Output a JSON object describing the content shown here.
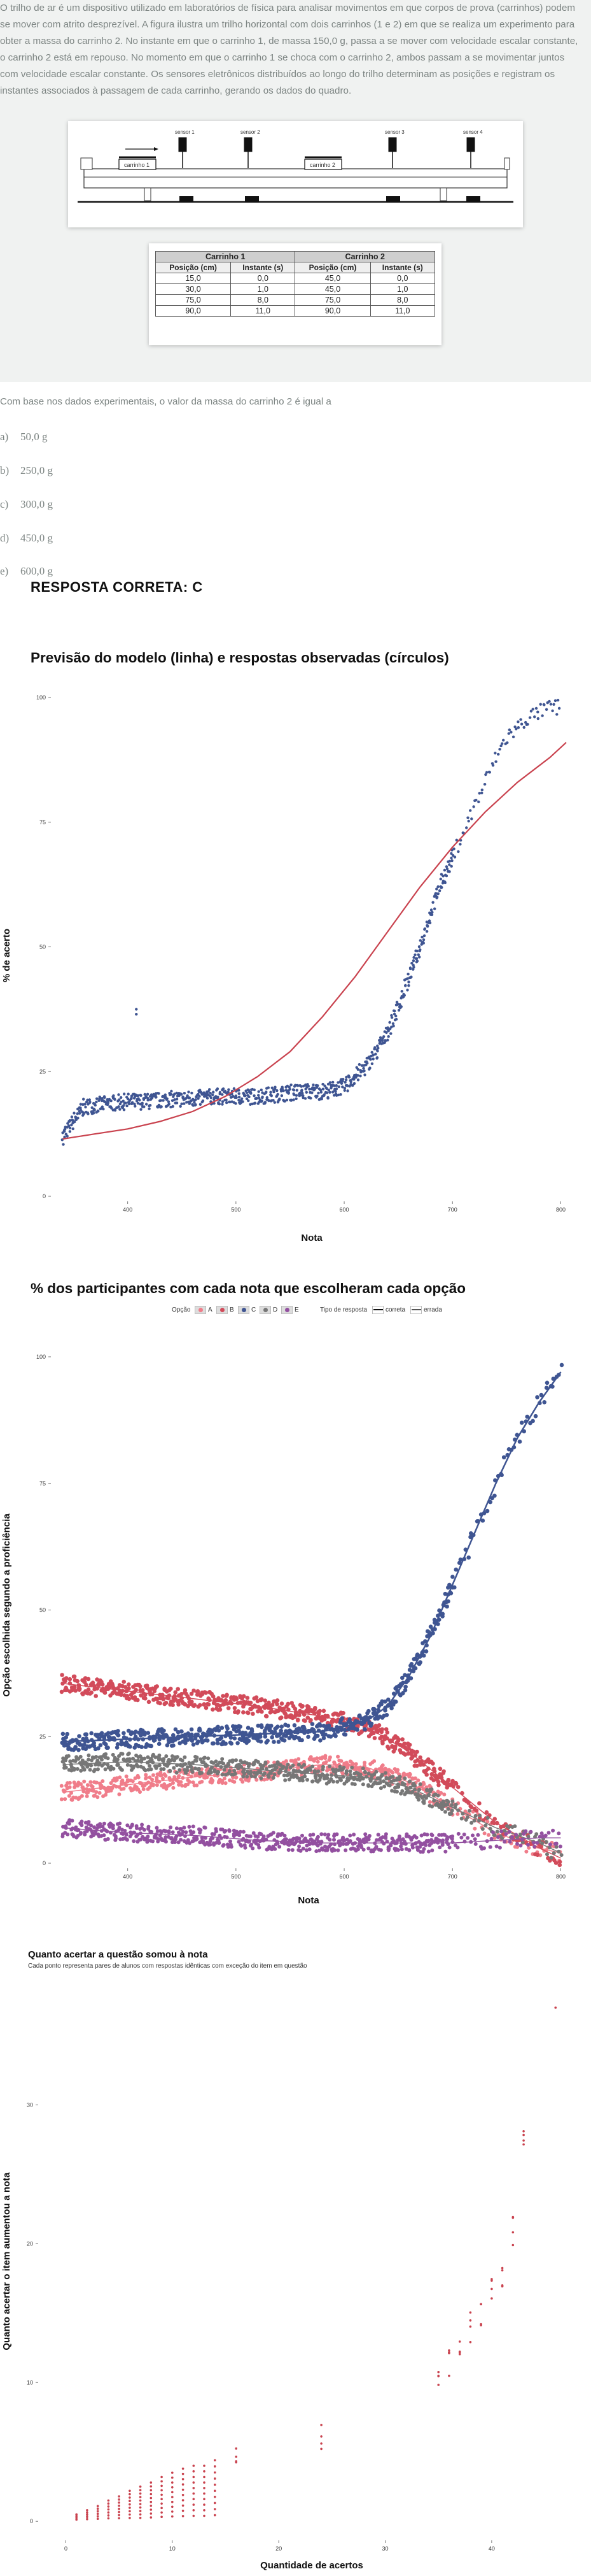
{
  "question": {
    "stem": "O trilho de ar é um dispositivo utilizado em laboratórios de física para analisar movimentos em que corpos de prova (carrinhos) podem se mover com atrito desprezível. A figura ilustra um trilho horizontal com dois carrinhos (1 e 2) em que se realiza um experimento para obter a massa do carrinho 2. No instante em que o carrinho 1, de massa 150,0 g, passa a se mover com velocidade escalar constante, o carrinho 2 está em repouso. No momento em que o carrinho 1 se choca com o carrinho 2, ambos passam a se movimentar juntos com velocidade escalar constante. Os sensores eletrônicos distribuídos ao longo do trilho determinam as posições e registram os instantes associados à passagem de cada carrinho, gerando os dados do quadro.",
    "prompt": "Com base nos dados experimentais, o valor da massa do carrinho 2 é igual a",
    "figure": {
      "sensors": [
        "sensor 1",
        "sensor 2",
        "sensor 3",
        "sensor 4"
      ],
      "carts": [
        "carrinho 1",
        "carrinho 2"
      ]
    },
    "table": {
      "groups": [
        "Carrinho 1",
        "Carrinho 2"
      ],
      "headers": [
        "Posição (cm)",
        "Instante (s)",
        "Posição (cm)",
        "Instante (s)"
      ],
      "rows": [
        [
          "15,0",
          "0,0",
          "45,0",
          "0,0"
        ],
        [
          "30,0",
          "1,0",
          "45,0",
          "1,0"
        ],
        [
          "75,0",
          "8,0",
          "75,0",
          "8,0"
        ],
        [
          "90,0",
          "11,0",
          "90,0",
          "11,0"
        ]
      ]
    },
    "alternatives": [
      {
        "letter": "a)",
        "text": "50,0 g"
      },
      {
        "letter": "b)",
        "text": "250,0 g"
      },
      {
        "letter": "c)",
        "text": "300,0 g"
      },
      {
        "letter": "d)",
        "text": "450,0 g"
      },
      {
        "letter": "e)",
        "text": "600,0 g"
      }
    ],
    "answer_text": "RESPOSTA CORRETA: C"
  },
  "chart_data": [
    {
      "type": "scatter",
      "title": "Previsão do modelo (linha) e respostas observadas (círculos)",
      "xlabel": "Nota",
      "ylabel": "% de acerto",
      "xlim": [
        335,
        805
      ],
      "ylim": [
        0,
        100
      ],
      "xticks": [
        "400",
        "500",
        "600",
        "700",
        "800"
      ],
      "yticks": [
        "0",
        "25",
        "50",
        "75",
        "100"
      ],
      "series": [
        {
          "role": "observed",
          "color": "#3f5592",
          "x": [
            340,
            360,
            380,
            400,
            420,
            440,
            460,
            480,
            500,
            520,
            540,
            560,
            580,
            600,
            610,
            620,
            630,
            640,
            650,
            660,
            670,
            680,
            690,
            700,
            710,
            720,
            730,
            740,
            750,
            760,
            770,
            780,
            790,
            800
          ],
          "y": [
            12,
            18,
            18.5,
            19,
            19,
            19.5,
            19.5,
            20,
            20,
            20,
            20.5,
            21,
            21,
            22,
            24,
            26,
            29,
            33,
            38,
            44,
            50,
            57,
            63,
            68,
            73,
            78,
            83,
            88,
            92,
            94,
            96,
            97,
            98,
            98
          ]
        },
        {
          "role": "model",
          "color": "#c9424e",
          "x": [
            340,
            370,
            400,
            430,
            460,
            490,
            520,
            550,
            580,
            610,
            640,
            670,
            700,
            730,
            760,
            790,
            805
          ],
          "y": [
            11.5,
            12.5,
            13.5,
            15,
            17,
            20,
            24,
            29,
            36,
            44,
            53,
            62,
            70,
            77,
            83,
            88,
            91
          ]
        }
      ],
      "outliers": [
        {
          "x": 408,
          "y": 36.5
        },
        {
          "x": 408,
          "y": 37.5
        }
      ]
    },
    {
      "type": "scatter",
      "title": "% dos participantes com cada nota que escolheram cada opção",
      "xlabel": "Nota",
      "ylabel": "Opção escolhida segundo a proficiência",
      "xlim": [
        335,
        805
      ],
      "ylim": [
        0,
        100
      ],
      "xticks": [
        "400",
        "500",
        "600",
        "700",
        "800"
      ],
      "yticks": [
        "0",
        "25",
        "50",
        "75",
        "100"
      ],
      "legend": {
        "option_label": "Opção",
        "options": [
          "A",
          "B",
          "C",
          "D",
          "E"
        ],
        "type_label": "Tipo de resposta",
        "types": [
          "correta",
          "errada"
        ],
        "placement": "top"
      },
      "series": [
        {
          "name": "A",
          "color": "#f07d8a",
          "x": [
            340,
            400,
            460,
            520,
            580,
            620,
            660,
            700,
            740,
            780,
            800
          ],
          "y": [
            14,
            15.5,
            17,
            18,
            19.5,
            19,
            16,
            11,
            6,
            3,
            2
          ]
        },
        {
          "name": "B",
          "color": "#d24b5a",
          "x": [
            340,
            400,
            460,
            520,
            580,
            620,
            660,
            700,
            740,
            780,
            800
          ],
          "y": [
            35.5,
            34,
            32.5,
            31,
            29,
            27,
            22,
            15,
            8,
            3,
            1
          ]
        },
        {
          "name": "C",
          "color": "#3f5592",
          "x": [
            340,
            400,
            460,
            520,
            580,
            620,
            640,
            660,
            680,
            700,
            720,
            740,
            760,
            780,
            800
          ],
          "y": [
            24,
            24.5,
            25,
            25.5,
            26,
            28,
            31,
            37,
            45,
            55,
            65,
            75,
            84,
            91,
            97
          ]
        },
        {
          "name": "D",
          "color": "#777777",
          "x": [
            340,
            400,
            460,
            520,
            580,
            620,
            660,
            700,
            740,
            780,
            800
          ],
          "y": [
            19.5,
            20,
            19.5,
            18.5,
            17.5,
            17,
            15,
            11,
            7,
            4,
            2
          ]
        },
        {
          "name": "E",
          "color": "#9350a0",
          "x": [
            340,
            400,
            460,
            520,
            580,
            620,
            660,
            700,
            740,
            780,
            800
          ],
          "y": [
            7,
            6,
            5.5,
            4.5,
            4,
            4,
            4,
            4,
            4.5,
            5,
            5
          ]
        }
      ]
    },
    {
      "type": "scatter",
      "title": "Quanto acertar a questão somou à nota",
      "subtitle": "Cada ponto representa pares de alunos com respostas idênticas com exceção do item em questão",
      "xlabel": "Quantidade de acertos",
      "ylabel": "Quanto acertar o item aumentou a nota",
      "xlim": [
        -2,
        47
      ],
      "ylim": [
        -1,
        38
      ],
      "xticks": [
        "0",
        "10",
        "20",
        "30",
        "40"
      ],
      "yticks": [
        "0",
        "10",
        "20",
        "30"
      ],
      "color": "#c9424e",
      "x": [
        1,
        2,
        3,
        4,
        5,
        6,
        7,
        8,
        9,
        10,
        11,
        12,
        13,
        14,
        16,
        24,
        35,
        36,
        37,
        38,
        39,
        40,
        41,
        42,
        43
      ],
      "y": [
        0.5,
        0.8,
        1.1,
        1.5,
        1.8,
        2.2,
        2.5,
        2.8,
        3.2,
        3.5,
        3.8,
        4,
        4,
        4.4,
        4.2,
        6,
        10.5,
        11.5,
        12.5,
        14,
        15,
        16.5,
        18,
        21,
        27
      ]
    }
  ]
}
